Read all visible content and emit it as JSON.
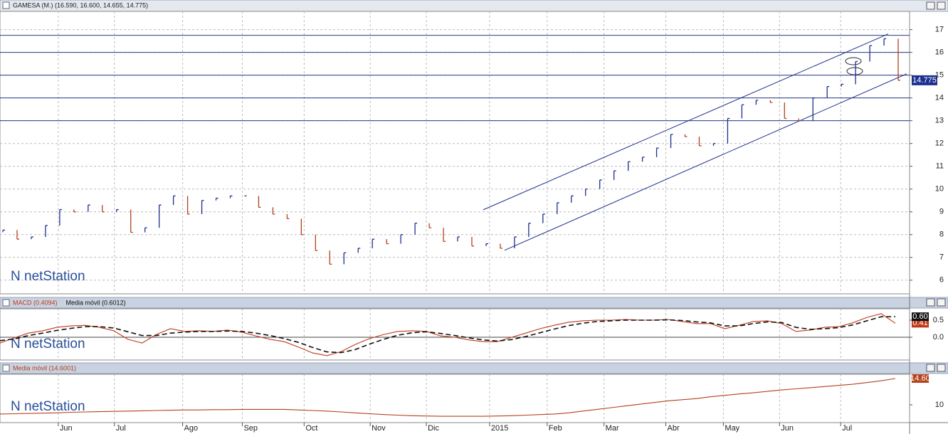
{
  "watermark": "netStation",
  "chart_data": [
    {
      "type": "stock",
      "title": "GAMESA (M.) (16.590, 16.600, 14.655, 14.775)",
      "x": [
        0,
        1,
        2,
        3,
        4,
        5,
        6,
        7,
        8,
        9,
        10,
        11,
        12,
        13,
        14,
        15,
        16,
        17,
        18,
        19,
        20,
        21,
        22,
        23,
        24,
        25,
        26,
        27,
        28,
        29,
        30,
        31,
        32,
        33,
        34,
        35,
        36,
        37,
        38,
        39,
        40,
        41,
        42,
        43,
        44,
        45,
        46,
        47,
        48,
        49,
        50,
        51,
        52,
        53,
        54,
        55,
        56,
        57,
        58,
        59,
        60,
        61,
        62,
        63
      ],
      "xlim": [
        0,
        64
      ],
      "series": [
        {
          "up_color": "#1d2f8f",
          "down_color": "#b5401c",
          "values": [
            8.2,
            7.8,
            7.9,
            8.4,
            9.1,
            9.0,
            9.3,
            9.0,
            9.1,
            8.1,
            8.3,
            9.3,
            9.7,
            8.9,
            9.5,
            9.6,
            9.7,
            9.7,
            9.2,
            8.9,
            8.7,
            8.0,
            7.3,
            6.7,
            7.2,
            7.4,
            7.8,
            7.6,
            8.0,
            8.5,
            8.3,
            7.7,
            7.9,
            7.5,
            7.6,
            7.4,
            7.9,
            8.5,
            8.9,
            9.4,
            9.7,
            10.0,
            10.4,
            10.8,
            11.2,
            11.4,
            11.8,
            12.4,
            12.3,
            11.9,
            12.0,
            13.1,
            13.7,
            13.9,
            13.8,
            13.1,
            13.0,
            14.0,
            14.5,
            14.6,
            15.6,
            16.3,
            16.6,
            14.775
          ]
        }
      ],
      "ylim": [
        5.4,
        17.8
      ],
      "yticks": [
        6,
        7,
        8,
        9,
        10,
        11,
        12,
        13,
        14,
        15,
        16,
        17
      ],
      "grid": true,
      "levels": [
        16.75,
        16,
        15,
        14,
        13
      ],
      "level_color": "#2a3a8a",
      "trendlines": [
        {
          "x": [
            34,
            62.5
          ],
          "y": [
            9.09,
            16.81
          ]
        },
        {
          "x": [
            35.5,
            63.8
          ],
          "y": [
            7.31,
            15.06
          ]
        }
      ],
      "trend_color": "#1d2f8f"
    },
    {
      "type": "line",
      "xlim": [
        0,
        64
      ],
      "series": [
        {
          "name": "MACD (0.4094)",
          "color": "#c0391b",
          "end_label": "0.41",
          "values": [
            -0.17,
            -0.02,
            0.12,
            0.19,
            0.29,
            0.33,
            0.35,
            0.29,
            0.19,
            -0.06,
            -0.17,
            0.08,
            0.25,
            0.17,
            0.19,
            0.17,
            0.21,
            0.15,
            0.04,
            -0.06,
            -0.13,
            -0.29,
            -0.46,
            -0.54,
            -0.42,
            -0.21,
            -0.04,
            0.08,
            0.17,
            0.19,
            0.17,
            0.04,
            0,
            -0.08,
            -0.13,
            -0.13,
            0,
            0.12,
            0.25,
            0.35,
            0.44,
            0.48,
            0.5,
            0.5,
            0.52,
            0.5,
            0.5,
            0.52,
            0.46,
            0.4,
            0.4,
            0.25,
            0.35,
            0.46,
            0.48,
            0.4,
            0.17,
            0.21,
            0.29,
            0.31,
            0.42,
            0.58,
            0.69,
            0.4094
          ]
        },
        {
          "name": "Media móvil (0.6012)",
          "color": "#111111",
          "dashed": true,
          "end_label": "0.60",
          "values": [
            -0.1,
            -0.05,
            0.05,
            0.12,
            0.2,
            0.26,
            0.31,
            0.31,
            0.27,
            0.16,
            0.05,
            0.05,
            0.12,
            0.15,
            0.17,
            0.17,
            0.18,
            0.17,
            0.12,
            0.05,
            -0.04,
            -0.15,
            -0.3,
            -0.43,
            -0.45,
            -0.36,
            -0.2,
            -0.06,
            0.06,
            0.13,
            0.16,
            0.11,
            0.05,
            -0.02,
            -0.08,
            -0.11,
            -0.07,
            0.02,
            0.13,
            0.24,
            0.34,
            0.41,
            0.46,
            0.48,
            0.5,
            0.5,
            0.5,
            0.51,
            0.49,
            0.45,
            0.42,
            0.33,
            0.33,
            0.4,
            0.45,
            0.43,
            0.29,
            0.23,
            0.25,
            0.28,
            0.36,
            0.48,
            0.6,
            0.6012
          ]
        }
      ],
      "ylim": [
        -0.667,
        0.833
      ],
      "yticks": [
        0.5,
        {
          "value": 0,
          "label": "0.0"
        }
      ],
      "zero_line": true
    },
    {
      "type": "line",
      "xlim": [
        0,
        64
      ],
      "series": [
        {
          "name": "Media móvil (14.6001)",
          "color": "#b5401c",
          "end_label": "14.60",
          "values": [
            8.4,
            8.45,
            8.5,
            8.55,
            8.6,
            8.7,
            8.75,
            8.8,
            8.85,
            8.9,
            8.95,
            9.0,
            9.05,
            9.1,
            9.1,
            9.15,
            9.15,
            9.2,
            9.2,
            9.2,
            9.2,
            9.1,
            9.0,
            8.9,
            8.75,
            8.6,
            8.45,
            8.3,
            8.2,
            8.1,
            8.05,
            8.0,
            8.0,
            8.0,
            8.0,
            8.05,
            8.1,
            8.2,
            8.3,
            8.4,
            8.6,
            8.9,
            9.2,
            9.5,
            9.8,
            10.1,
            10.4,
            10.7,
            10.9,
            11.1,
            11.4,
            11.65,
            11.9,
            12.1,
            12.35,
            12.6,
            12.8,
            13.0,
            13.2,
            13.4,
            13.6,
            13.9,
            14.2,
            14.6001
          ]
        }
      ],
      "ylim": [
        6.89,
        15.35
      ],
      "yticks": [
        10
      ],
      "xticks": [
        {
          "value": 4.1,
          "label": "Jun"
        },
        {
          "value": 8.05,
          "label": "Jul"
        },
        {
          "value": 12.85,
          "label": "Ago"
        },
        {
          "value": 17.05,
          "label": "Sep"
        },
        {
          "value": 21.4,
          "label": "Oct"
        },
        {
          "value": 26.05,
          "label": "Nov"
        },
        {
          "value": 30,
          "label": "Dic"
        },
        {
          "value": 34.45,
          "label": "2015"
        },
        {
          "value": 38.5,
          "label": "Feb"
        },
        {
          "value": 42.5,
          "label": "Mar"
        },
        {
          "value": 46.85,
          "label": "Abr"
        },
        {
          "value": 50.9,
          "label": "May"
        },
        {
          "value": 54.85,
          "label": "Jun"
        },
        {
          "value": 59.15,
          "label": "Jul"
        }
      ]
    }
  ]
}
